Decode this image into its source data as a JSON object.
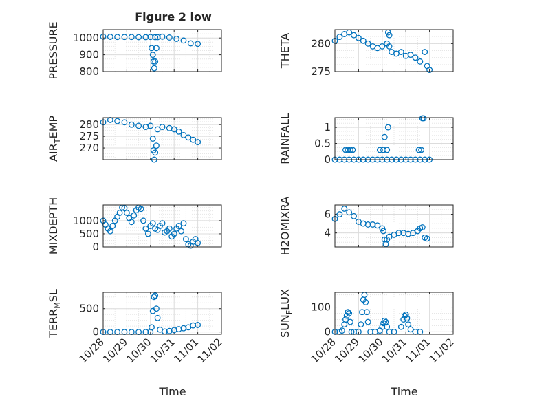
{
  "figure": {
    "title": "Figure 2 low"
  },
  "colors": {
    "marker": "#0072BD",
    "grid": "#dcdcdc",
    "axes": "#262626",
    "background": "#ffffff"
  },
  "chart_data": [
    {
      "type": "scatter",
      "marker": "open-circle",
      "grid": true,
      "legend": "none",
      "ylabel": "PRESSURE",
      "xlabel": "",
      "title": "Figure 2 low",
      "xlim": [
        "10/28",
        "11/02"
      ],
      "ylim": [
        800,
        1050
      ],
      "yticks": [
        800,
        900,
        1000
      ],
      "xticks": [
        "10/28",
        "10/29",
        "10/30",
        "10/31",
        "11/01",
        "11/02"
      ],
      "xtick_labels_shown": false,
      "x": [
        0,
        0.3,
        0.6,
        0.9,
        1.2,
        1.5,
        1.8,
        2.0,
        2.2,
        2.5,
        2.8,
        3.1,
        3.4,
        3.7,
        4.0,
        2.05,
        2.1,
        2.13,
        2.16,
        2.2,
        2.25,
        2.3
      ],
      "y": [
        1008,
        1007,
        1006,
        1006,
        1006,
        1005,
        1005,
        1006,
        1005,
        1008,
        1003,
        995,
        985,
        968,
        965,
        940,
        900,
        860,
        820,
        860,
        940,
        1005
      ]
    },
    {
      "type": "scatter",
      "marker": "open-circle",
      "grid": true,
      "legend": "none",
      "ylabel": "THETA",
      "xlabel": "",
      "xlim": [
        "10/28",
        "11/02"
      ],
      "ylim": [
        275,
        282.5
      ],
      "yticks": [
        275,
        280
      ],
      "xticks": [
        "10/28",
        "10/29",
        "10/30",
        "10/31",
        "11/01",
        "11/02"
      ],
      "xtick_labels_shown": false,
      "x": [
        0,
        0.2,
        0.4,
        0.6,
        0.8,
        1.0,
        1.2,
        1.4,
        1.6,
        1.8,
        2.0,
        2.2,
        2.3,
        2.4,
        2.6,
        2.8,
        3.0,
        3.2,
        3.4,
        3.6,
        3.8,
        3.9,
        4.0,
        2.25,
        2.3
      ],
      "y": [
        280.5,
        281.2,
        281.7,
        282.0,
        281.5,
        281.0,
        280.5,
        280.0,
        279.5,
        279.2,
        279.5,
        280.0,
        279.5,
        278.5,
        278.2,
        278.5,
        277.8,
        278.0,
        277.5,
        276.8,
        278.5,
        276.0,
        275.3,
        282.0,
        281.5
      ]
    },
    {
      "type": "scatter",
      "marker": "open-circle",
      "grid": true,
      "legend": "none",
      "ylabel": "AIR_TEMP",
      "xlabel": "",
      "xlim": [
        "10/28",
        "11/02"
      ],
      "ylim": [
        265,
        283
      ],
      "yticks": [
        270,
        275,
        280
      ],
      "xticks": [
        "10/28",
        "10/29",
        "10/30",
        "10/31",
        "11/01",
        "11/02"
      ],
      "xtick_labels_shown": false,
      "x": [
        0,
        0.3,
        0.6,
        0.9,
        1.2,
        1.5,
        1.8,
        2.0,
        2.1,
        2.13,
        2.16,
        2.2,
        2.25,
        2.3,
        2.5,
        2.8,
        3.0,
        3.2,
        3.4,
        3.6,
        3.8,
        4.0
      ],
      "y": [
        281,
        282,
        281.5,
        281,
        280,
        279.5,
        279,
        279.5,
        274,
        269,
        265,
        268,
        271,
        278,
        279,
        278.5,
        278,
        277,
        275.5,
        274.5,
        273.5,
        272.5
      ]
    },
    {
      "type": "scatter",
      "marker": "open-circle",
      "grid": true,
      "legend": "none",
      "ylabel": "RAINFALL",
      "xlabel": "",
      "xlim": [
        "10/28",
        "11/02"
      ],
      "ylim": [
        0,
        1.3
      ],
      "yticks": [
        0,
        0.5,
        1
      ],
      "xticks": [
        "10/28",
        "10/29",
        "10/30",
        "10/31",
        "11/01",
        "11/02"
      ],
      "xtick_labels_shown": false,
      "x": [
        0,
        0.2,
        0.4,
        0.6,
        0.8,
        1.0,
        1.2,
        1.4,
        1.6,
        1.8,
        2.0,
        2.2,
        2.4,
        2.6,
        2.8,
        3.0,
        3.2,
        3.4,
        3.6,
        3.8,
        4.0,
        0.45,
        0.55,
        0.65,
        0.75,
        1.9,
        2.05,
        2.1,
        2.2,
        2.25,
        3.55,
        3.65,
        3.7,
        3.75
      ],
      "y": [
        0,
        0,
        0,
        0,
        0,
        0,
        0,
        0,
        0,
        0,
        0,
        0,
        0,
        0,
        0,
        0,
        0,
        0,
        0,
        0,
        0,
        0.3,
        0.3,
        0.3,
        0.3,
        0.3,
        0.3,
        0.7,
        0.3,
        1.0,
        0.3,
        0.3,
        1.28,
        1.28
      ]
    },
    {
      "type": "scatter",
      "marker": "open-circle",
      "grid": true,
      "legend": "none",
      "ylabel": "MIXDEPTH",
      "xlabel": "",
      "xlim": [
        "10/28",
        "11/02"
      ],
      "ylim": [
        0,
        1600
      ],
      "yticks": [
        0,
        500,
        1000
      ],
      "xticks": [
        "10/28",
        "10/29",
        "10/30",
        "10/31",
        "11/01",
        "11/02"
      ],
      "xtick_labels_shown": false,
      "x": [
        0,
        0.1,
        0.2,
        0.3,
        0.4,
        0.5,
        0.6,
        0.7,
        0.8,
        0.9,
        1.0,
        1.1,
        1.2,
        1.3,
        1.4,
        1.5,
        1.6,
        1.7,
        1.8,
        1.9,
        2.0,
        2.1,
        2.2,
        2.3,
        2.4,
        2.5,
        2.6,
        2.7,
        2.8,
        2.9,
        3.0,
        3.1,
        3.2,
        3.3,
        3.4,
        3.5,
        3.6,
        3.7,
        3.8,
        3.9,
        4.0
      ],
      "y": [
        1000,
        850,
        700,
        600,
        800,
        1000,
        1150,
        1300,
        1500,
        1480,
        1300,
        1100,
        950,
        1200,
        1400,
        1500,
        1450,
        1000,
        700,
        500,
        800,
        900,
        700,
        650,
        800,
        900,
        550,
        600,
        700,
        400,
        500,
        700,
        800,
        600,
        900,
        300,
        100,
        50,
        200,
        300,
        150
      ]
    },
    {
      "type": "scatter",
      "marker": "open-circle",
      "grid": true,
      "legend": "none",
      "ylabel": "H2OMIXRA",
      "xlabel": "",
      "xlim": [
        "10/28",
        "11/02"
      ],
      "ylim": [
        2.5,
        7
      ],
      "yticks": [
        4,
        6
      ],
      "xticks": [
        "10/28",
        "10/29",
        "10/30",
        "10/31",
        "11/01",
        "11/02"
      ],
      "xtick_labels_shown": false,
      "x": [
        0,
        0.2,
        0.4,
        0.6,
        0.8,
        1.0,
        1.2,
        1.4,
        1.6,
        1.8,
        2.0,
        2.05,
        2.1,
        2.15,
        2.2,
        2.3,
        2.5,
        2.7,
        2.9,
        3.1,
        3.3,
        3.5,
        3.6,
        3.7,
        3.8,
        3.9
      ],
      "y": [
        5.5,
        6.0,
        6.6,
        6.2,
        5.8,
        5.2,
        5.0,
        4.9,
        4.9,
        4.8,
        4.5,
        4.2,
        3.3,
        2.8,
        3.3,
        3.6,
        3.8,
        4.0,
        4.0,
        3.9,
        4.0,
        4.2,
        4.5,
        4.6,
        3.5,
        3.4
      ]
    },
    {
      "type": "scatter",
      "marker": "open-circle",
      "grid": true,
      "legend": "none",
      "ylabel": "TERR_MSL",
      "xlabel": "Time",
      "xlim": [
        "10/28",
        "11/02"
      ],
      "ylim": [
        -50,
        850
      ],
      "yticks": [
        0,
        500
      ],
      "xticks": [
        "10/28",
        "10/29",
        "10/30",
        "10/31",
        "11/01",
        "11/02"
      ],
      "xtick_labels_shown": true,
      "x": [
        0,
        0.3,
        0.6,
        0.9,
        1.2,
        1.5,
        1.8,
        2.0,
        2.05,
        2.1,
        2.15,
        2.2,
        2.25,
        2.3,
        2.4,
        2.6,
        2.8,
        3.0,
        3.2,
        3.4,
        3.6,
        3.8,
        4.0
      ],
      "y": [
        0,
        0,
        0,
        0,
        0,
        0,
        0,
        0,
        100,
        450,
        750,
        780,
        500,
        300,
        50,
        10,
        20,
        40,
        60,
        80,
        100,
        140,
        150
      ]
    },
    {
      "type": "scatter",
      "marker": "open-circle",
      "grid": true,
      "legend": "none",
      "ylabel": "SUN_FLUX",
      "xlabel": "Time",
      "xlim": [
        "10/28",
        "11/02"
      ],
      "ylim": [
        -10,
        160
      ],
      "yticks": [
        0,
        100
      ],
      "xticks": [
        "10/28",
        "10/29",
        "10/30",
        "10/31",
        "11/01",
        "11/02"
      ],
      "xtick_labels_shown": true,
      "x": [
        0,
        0.2,
        0.3,
        0.4,
        0.45,
        0.5,
        0.55,
        0.6,
        0.65,
        0.7,
        0.8,
        1.0,
        1.1,
        1.15,
        1.2,
        1.25,
        1.3,
        1.35,
        1.4,
        1.5,
        1.7,
        1.9,
        2.0,
        2.05,
        2.1,
        2.15,
        2.2,
        2.3,
        2.5,
        2.8,
        2.9,
        2.95,
        3.0,
        3.05,
        3.1,
        3.2,
        3.4,
        3.6
      ],
      "y": [
        0,
        0,
        5,
        30,
        50,
        65,
        80,
        75,
        40,
        0,
        0,
        0,
        30,
        80,
        130,
        150,
        120,
        80,
        40,
        0,
        0,
        5,
        20,
        35,
        45,
        40,
        20,
        0,
        0,
        20,
        50,
        65,
        70,
        55,
        30,
        10,
        0,
        0
      ]
    }
  ]
}
